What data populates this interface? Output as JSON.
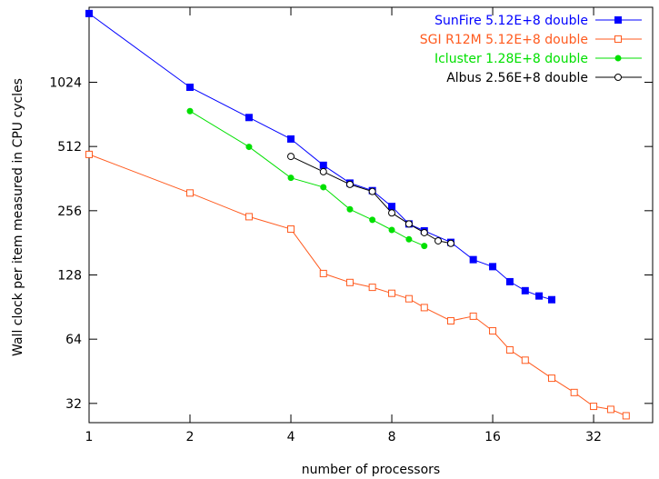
{
  "chart_data": {
    "type": "line",
    "title": "",
    "xlabel": "number of processors",
    "ylabel": "Wall clock per item measured in CPU cycles",
    "xscale": "log2",
    "yscale": "log2",
    "xlim": [
      1,
      48
    ],
    "ylim": [
      26,
      2300
    ],
    "x_ticks": [
      {
        "value": 1,
        "label": "1"
      },
      {
        "value": 2,
        "label": "2"
      },
      {
        "value": 4,
        "label": "4"
      },
      {
        "value": 8,
        "label": "8"
      },
      {
        "value": 16,
        "label": "16"
      },
      {
        "value": 32,
        "label": "32"
      }
    ],
    "y_ticks": [
      {
        "value": 32,
        "label": "32"
      },
      {
        "value": 64,
        "label": "64"
      },
      {
        "value": 128,
        "label": "128"
      },
      {
        "value": 256,
        "label": "256"
      },
      {
        "value": 512,
        "label": "512"
      },
      {
        "value": 1024,
        "label": "1024"
      }
    ],
    "grid": false,
    "legend_position": "top-right",
    "series": [
      {
        "name": "SunFire 5.12E+8 double",
        "color": "#0000ff",
        "marker": "filled-square",
        "x": [
          1,
          2,
          3,
          4,
          5,
          6,
          7,
          8,
          9,
          10,
          12,
          14,
          16,
          18,
          20,
          22,
          24
        ],
        "y": [
          2150,
          970,
          700,
          555,
          418,
          345,
          318,
          268,
          222,
          206,
          182,
          151,
          140,
          119,
          108,
          102,
          98
        ]
      },
      {
        "name": "SGI R12M 5.12E+8 double",
        "color": "#ff5a1e",
        "marker": "open-square",
        "x": [
          1,
          2,
          3,
          4,
          5,
          6,
          7,
          8,
          9,
          10,
          12,
          14,
          16,
          18,
          20,
          24,
          28,
          32,
          36,
          40
        ],
        "y": [
          470,
          310,
          240,
          210,
          130,
          118,
          112,
          105,
          99,
          90,
          78,
          82,
          70,
          57,
          51,
          42,
          36,
          31,
          30,
          28
        ]
      },
      {
        "name": "Icluster 1.28E+8 double",
        "color": "#00e000",
        "marker": "filled-circle",
        "x": [
          2,
          3,
          4,
          5,
          6,
          7,
          8,
          9,
          10
        ],
        "y": [
          750,
          510,
          365,
          330,
          260,
          232,
          208,
          188,
          175
        ]
      },
      {
        "name": "Albus 2.56E+8 double",
        "color": "#000000",
        "marker": "open-circle",
        "x": [
          4,
          5,
          6,
          7,
          8,
          9,
          10,
          11,
          12
        ],
        "y": [
          460,
          390,
          340,
          315,
          250,
          222,
          202,
          185,
          180
        ]
      }
    ]
  }
}
